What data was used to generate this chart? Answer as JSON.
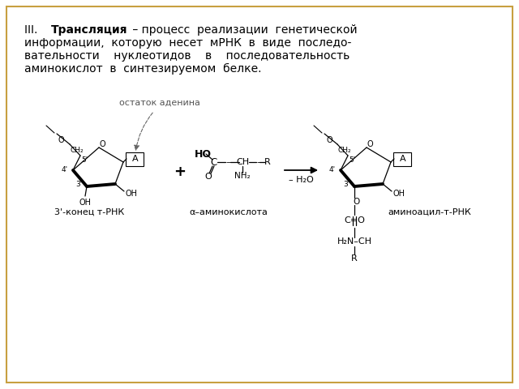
{
  "background_color": "#ffffff",
  "border_color": "#c8a040",
  "text_color": "#000000",
  "line1a": "III.  ",
  "line1b": "Трансляция",
  "line1c": " – процесс  реализации  генетической",
  "line2": "информации,  которую  несет  мРНК  в  виде  последо-",
  "line3": "вательности    нуклеотидов    в    последовательность",
  "line4": "аминокислот  в  синтезируемом  белке.",
  "label_adenine": "остаток аденина",
  "label_left": "3'-конец т-РНК",
  "label_amino": "α–аминокислота",
  "label_right": "аминоацил-т-РНК"
}
